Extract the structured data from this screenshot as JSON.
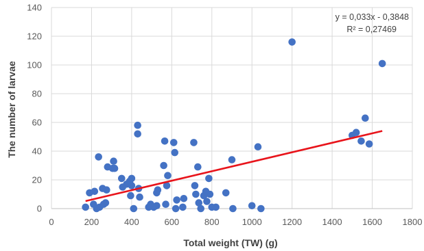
{
  "chart_data": {
    "type": "scatter",
    "title": "",
    "xlabel": "Total weight (TW) (g)",
    "ylabel": "The number of larvae",
    "xlim": [
      0,
      1800
    ],
    "ylim": [
      0,
      140
    ],
    "x_ticks": [
      0,
      200,
      400,
      600,
      800,
      1000,
      1200,
      1400,
      1600,
      1800
    ],
    "y_ticks": [
      0,
      20,
      40,
      60,
      80,
      100,
      120,
      140
    ],
    "grid": true,
    "legend": "none",
    "point_color": "#4472C4",
    "trendline": {
      "type": "linear",
      "slope": 0.033,
      "intercept": -0.3848,
      "x_range": [
        170,
        1650
      ],
      "color": "#E8141B",
      "equation_label": "y = 0,033x - 0,3848",
      "r2_label": "R² = 0,27469"
    },
    "points": [
      [
        170,
        1
      ],
      [
        190,
        11
      ],
      [
        210,
        3
      ],
      [
        215,
        12
      ],
      [
        225,
        0
      ],
      [
        235,
        36
      ],
      [
        240,
        1
      ],
      [
        255,
        14
      ],
      [
        260,
        3
      ],
      [
        270,
        4
      ],
      [
        275,
        13
      ],
      [
        280,
        29
      ],
      [
        305,
        28
      ],
      [
        310,
        33
      ],
      [
        315,
        28
      ],
      [
        350,
        21
      ],
      [
        355,
        15
      ],
      [
        375,
        17
      ],
      [
        390,
        19
      ],
      [
        395,
        9
      ],
      [
        400,
        21
      ],
      [
        400,
        16
      ],
      [
        410,
        0
      ],
      [
        430,
        58
      ],
      [
        430,
        52
      ],
      [
        435,
        14
      ],
      [
        440,
        8
      ],
      [
        485,
        1
      ],
      [
        495,
        3
      ],
      [
        510,
        1
      ],
      [
        525,
        2
      ],
      [
        525,
        11
      ],
      [
        530,
        13
      ],
      [
        560,
        30
      ],
      [
        565,
        47
      ],
      [
        570,
        3
      ],
      [
        575,
        16
      ],
      [
        580,
        23
      ],
      [
        610,
        46
      ],
      [
        615,
        39
      ],
      [
        620,
        0
      ],
      [
        625,
        6
      ],
      [
        655,
        1
      ],
      [
        660,
        7
      ],
      [
        710,
        46
      ],
      [
        715,
        16
      ],
      [
        720,
        10
      ],
      [
        730,
        29
      ],
      [
        735,
        4
      ],
      [
        745,
        0
      ],
      [
        760,
        9
      ],
      [
        770,
        12
      ],
      [
        775,
        5
      ],
      [
        785,
        21
      ],
      [
        790,
        10
      ],
      [
        800,
        1
      ],
      [
        820,
        1
      ],
      [
        870,
        11
      ],
      [
        900,
        34
      ],
      [
        905,
        0
      ],
      [
        1000,
        2
      ],
      [
        1030,
        43
      ],
      [
        1045,
        0
      ],
      [
        1200,
        116
      ],
      [
        1500,
        51
      ],
      [
        1520,
        53
      ],
      [
        1545,
        47
      ],
      [
        1565,
        63
      ],
      [
        1585,
        45
      ],
      [
        1650,
        101
      ]
    ]
  }
}
